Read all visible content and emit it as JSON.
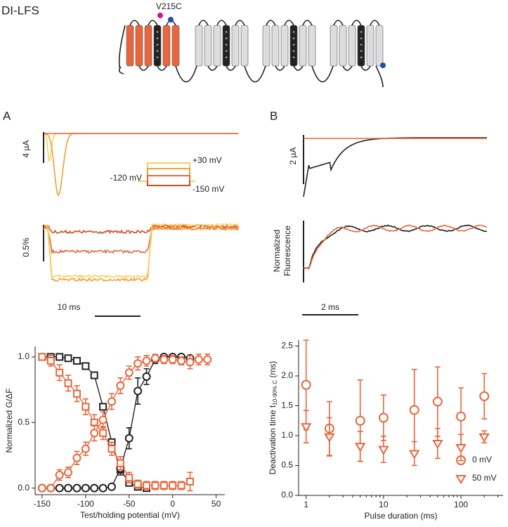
{
  "figure": {
    "title": "DI-LFS",
    "mutation": "V215C",
    "panel_a": "A",
    "panel_b": "B",
    "a_current_scale": "4 µA",
    "a_fluor_scale": "0.5%",
    "a_time_scale": "10 ms",
    "protocol_high": "+30 mV",
    "protocol_hold": "-120 mV",
    "protocol_low": "-150 mV",
    "b_current_scale": "2 µA",
    "b_fluor_label": [
      "Normalized",
      "Fluorescence"
    ],
    "b_time_scale": "2 ms"
  },
  "chart_data": [
    {
      "type": "scatter",
      "x_label": "Test/holding potential (mV)",
      "y_label": "Normalized G/ΔF",
      "xlim": [
        -158,
        60
      ],
      "xticks": [
        -150,
        -100,
        -50,
        0,
        50
      ],
      "ylim": [
        -0.05,
        1.08
      ],
      "yticks": [
        {
          "value": 0,
          "label": "0.0"
        },
        0.5,
        {
          "value": 1,
          "label": "1.0"
        }
      ],
      "series": [
        {
          "color": "#222222",
          "marker": "square",
          "x": [
            -150,
            -140,
            -130,
            -120,
            -110,
            -100,
            -90,
            -80,
            -70,
            -60,
            -50,
            -40,
            -30
          ],
          "values": [
            1.0,
            1.0,
            1.0,
            0.99,
            0.97,
            0.93,
            0.86,
            0.62,
            0.35,
            0.14,
            0.04,
            0.01,
            0.0
          ]
        },
        {
          "color": "#222222",
          "marker": "circle",
          "x": [
            -150,
            -140,
            -130,
            -120,
            -110,
            -100,
            -90,
            -80,
            -70,
            -60,
            -50,
            -40,
            -30,
            -20,
            -10,
            0,
            10,
            20
          ],
          "values": [
            0,
            0,
            0,
            0,
            0,
            0,
            0,
            0,
            0.01,
            0.15,
            0.38,
            0.74,
            0.85,
            0.98,
            1.0,
            1.0,
            1.0,
            0.99
          ],
          "errors": [
            0.01,
            0.01,
            0.01,
            0.01,
            0.01,
            0.01,
            0.01,
            0.01,
            0.02,
            0.05,
            0.08,
            0.1,
            0.06,
            0.03,
            0.02,
            0.02,
            0.02,
            0.02
          ]
        },
        {
          "color": "#e8663d",
          "marker": "square",
          "x": [
            -150,
            -140,
            -130,
            -120,
            -110,
            -100,
            -90,
            -80,
            -70,
            -60,
            -50,
            -40,
            -30,
            -20,
            -10,
            0,
            10,
            20
          ],
          "values": [
            1.0,
            0.97,
            0.88,
            0.8,
            0.72,
            0.62,
            0.5,
            0.42,
            0.3,
            0.19,
            0.08,
            0.03,
            0.02,
            0.02,
            0.02,
            0.02,
            0.02,
            0.05
          ],
          "errors": [
            0.02,
            0.04,
            0.06,
            0.06,
            0.06,
            0.06,
            0.06,
            0.05,
            0.05,
            0.05,
            0.04,
            0.03,
            0.03,
            0.03,
            0.03,
            0.03,
            0.03,
            0.07
          ]
        },
        {
          "color": "#e8663d",
          "marker": "circle",
          "x": [
            -150,
            -140,
            -130,
            -120,
            -110,
            -100,
            -90,
            -80,
            -70,
            -60,
            -50,
            -40,
            -30,
            -20,
            -10,
            0,
            10,
            20,
            30,
            40
          ],
          "values": [
            0,
            0,
            0.1,
            0.12,
            0.23,
            0.3,
            0.42,
            0.52,
            0.66,
            0.78,
            0.88,
            0.95,
            0.97,
            0.99,
            0.98,
            0.98,
            0.97,
            0.96,
            0.98,
            0.98
          ],
          "errors": [
            0.02,
            0.02,
            0.04,
            0.04,
            0.05,
            0.05,
            0.06,
            0.06,
            0.06,
            0.06,
            0.05,
            0.05,
            0.04,
            0.03,
            0.03,
            0.03,
            0.03,
            0.05,
            0.04,
            0.04
          ]
        }
      ]
    },
    {
      "type": "scatter",
      "x_label": "Pulse duration (ms)",
      "y_label": [
        "Deactivation time t",
        "10-90% C",
        " (ms)"
      ],
      "log_x": true,
      "xlim": [
        0.8,
        350
      ],
      "xticks": [
        1,
        10,
        100
      ],
      "xticks_minor": [
        2,
        3,
        4,
        5,
        6,
        7,
        8,
        9,
        20,
        30,
        40,
        50,
        60,
        70,
        80,
        90,
        200,
        300
      ],
      "ylim": [
        0,
        2.6
      ],
      "yticks": [
        {
          "value": 0,
          "label": "0.0"
        },
        0.5,
        {
          "value": 1,
          "label": "1.0"
        },
        1.5,
        {
          "value": 2,
          "label": "2.0"
        },
        2.5
      ],
      "legend": "bottom-right",
      "series": [
        {
          "name": "0 mV",
          "color": "#e8663d",
          "marker": "circle",
          "x": [
            1,
            2,
            5,
            10,
            25,
            50,
            100,
            200
          ],
          "values": [
            1.85,
            1.12,
            1.25,
            1.3,
            1.43,
            1.57,
            1.32,
            1.66
          ],
          "errors": [
            0.75,
            0.45,
            0.68,
            0.38,
            0.68,
            0.58,
            0.48,
            0.38
          ]
        },
        {
          "name": "50 mV",
          "color": "#e8663d",
          "marker": "triangle",
          "x": [
            1,
            2,
            5,
            10,
            25,
            50,
            100,
            200
          ],
          "values": [
            1.15,
            0.98,
            0.82,
            0.77,
            0.7,
            0.87,
            0.8,
            0.98
          ],
          "errors": [
            0.27,
            0.32,
            0.25,
            0.22,
            0.2,
            0.25,
            0.22,
            0.1
          ]
        }
      ]
    }
  ]
}
